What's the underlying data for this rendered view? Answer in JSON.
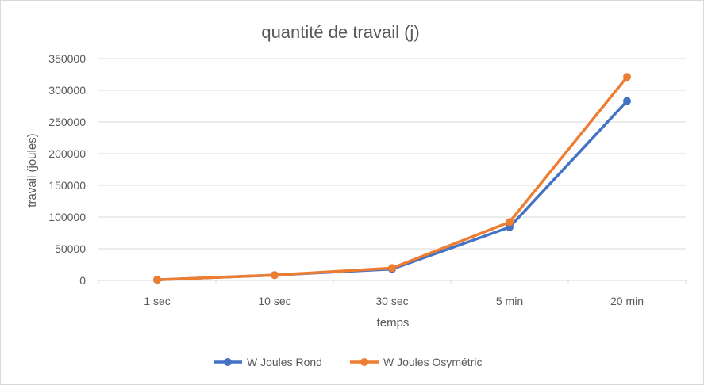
{
  "chart_data": {
    "type": "line",
    "title": "quantité de travail (j)",
    "xlabel": "temps",
    "ylabel": "travail (joules)",
    "categories": [
      "1 sec",
      "10 sec",
      "30 sec",
      "5 min",
      "20 min"
    ],
    "ylim": [
      0,
      350000
    ],
    "yticks": [
      0,
      50000,
      100000,
      150000,
      200000,
      250000,
      300000,
      350000
    ],
    "ytick_labels": [
      "0",
      "50000",
      "100000",
      "150000",
      "200000",
      "250000",
      "300000",
      "350000"
    ],
    "grid": true,
    "legend": "bottom",
    "series": [
      {
        "name": "W Joules Rond",
        "color": "#4472c4",
        "values": [
          1000,
          8500,
          18000,
          84000,
          283000
        ]
      },
      {
        "name": "W Joules Osymétric",
        "color": "#ed7d31",
        "values": [
          1000,
          8500,
          19500,
          92000,
          321000
        ]
      }
    ]
  }
}
